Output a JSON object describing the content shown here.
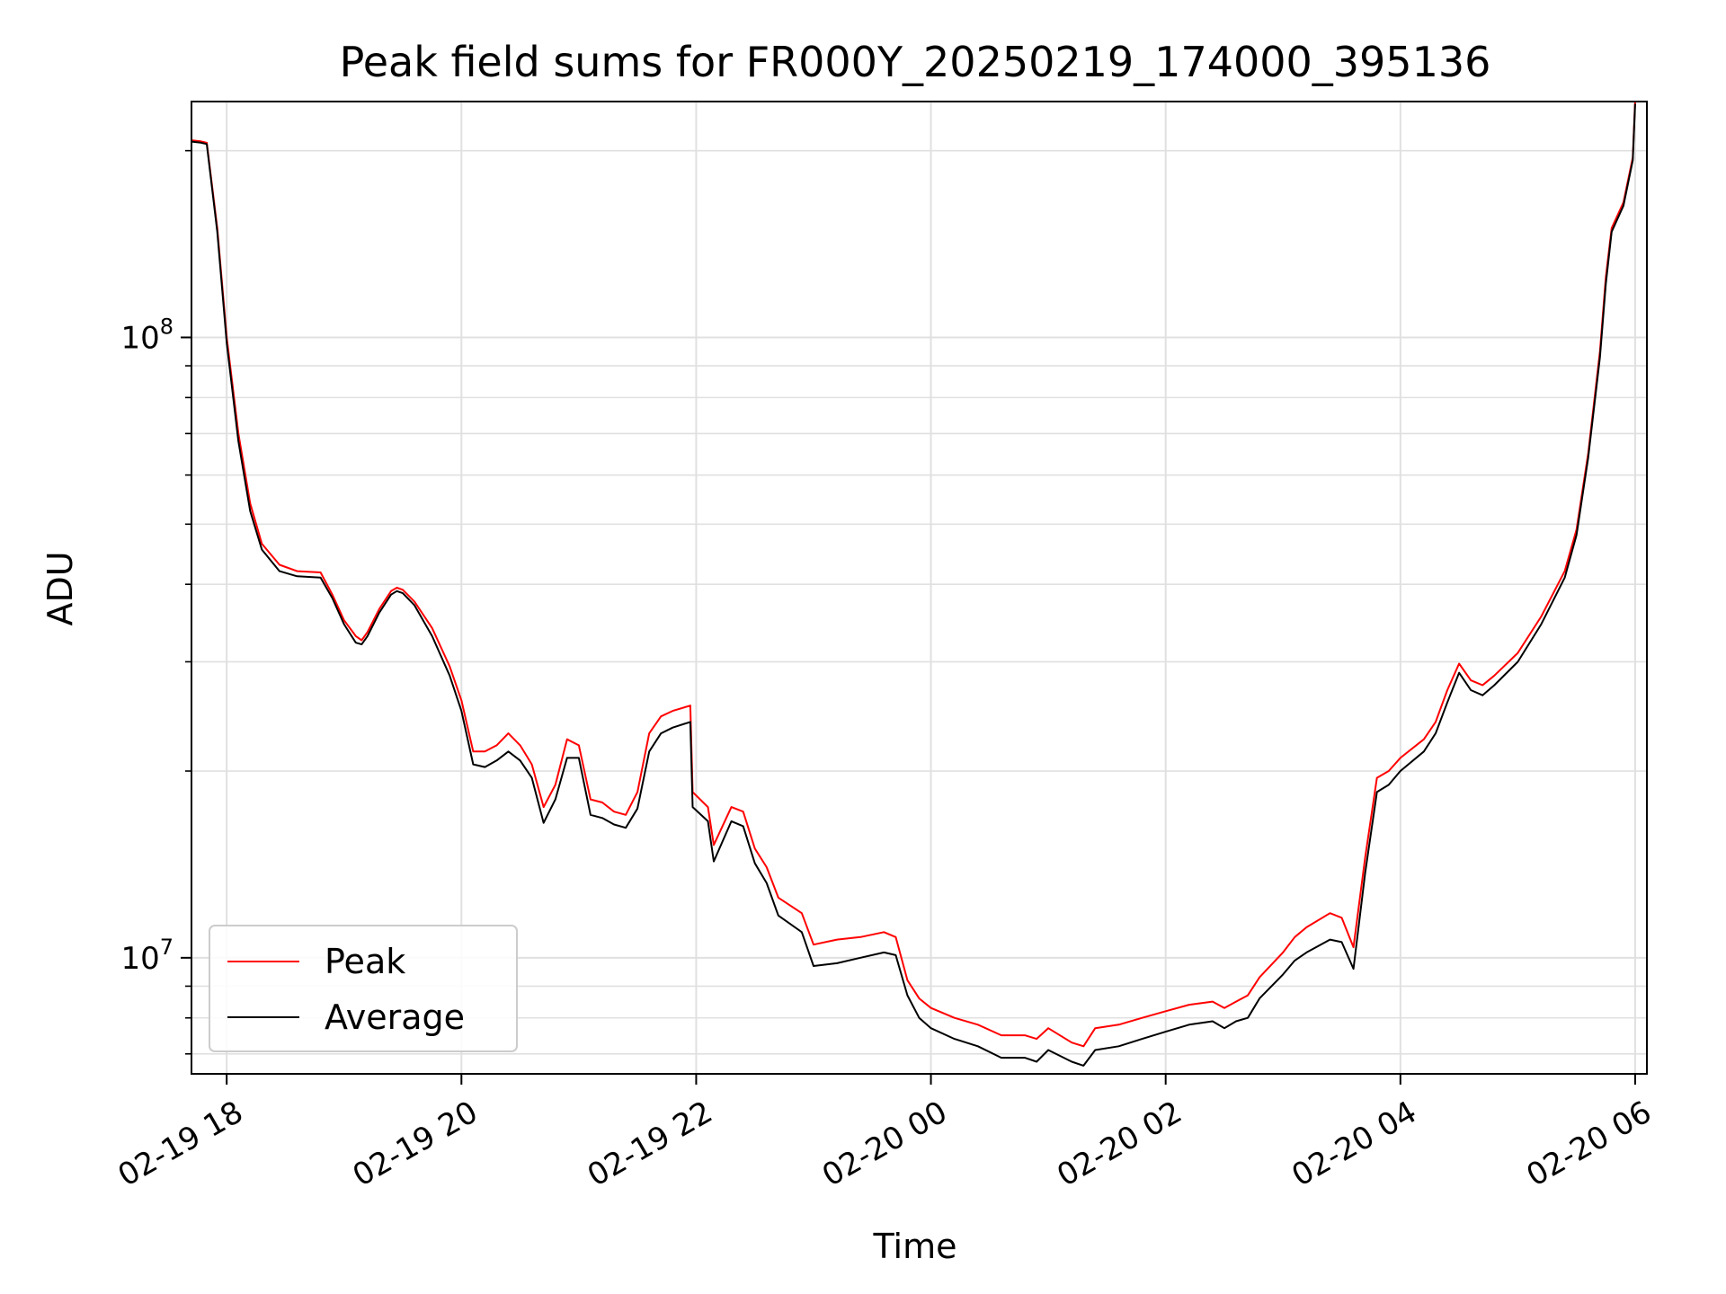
{
  "chart_data": {
    "type": "line",
    "title": "Peak field sums for FR000Y_20250219_174000_395136",
    "xlabel": "Time",
    "ylabel": "ADU",
    "yscale": "log",
    "xlim": [
      17.7,
      30.1
    ],
    "ylim": [
      6500000,
      240000000
    ],
    "grid": true,
    "legend_position": "lower-left",
    "x_unit": "hours since 2025-02-19 00:00",
    "xticks": [
      {
        "x": 18,
        "label": "02-19 18"
      },
      {
        "x": 20,
        "label": "02-19 20"
      },
      {
        "x": 22,
        "label": "02-19 22"
      },
      {
        "x": 24,
        "label": "02-20 00"
      },
      {
        "x": 26,
        "label": "02-20 02"
      },
      {
        "x": 28,
        "label": "02-20 04"
      },
      {
        "x": 30,
        "label": "02-20 06"
      }
    ],
    "yticks": [
      {
        "y": 10000000,
        "base": "10",
        "exp": "7"
      },
      {
        "y": 100000000,
        "base": "10",
        "exp": "8"
      }
    ],
    "series": [
      {
        "name": "Peak",
        "color": "#ff0000",
        "x": [
          17.68,
          17.78,
          17.83,
          17.92,
          18.0,
          18.1,
          18.2,
          18.3,
          18.45,
          18.6,
          18.8,
          18.9,
          19.0,
          19.1,
          19.15,
          19.2,
          19.3,
          19.4,
          19.45,
          19.5,
          19.6,
          19.75,
          19.9,
          20.0,
          20.1,
          20.2,
          20.3,
          20.4,
          20.5,
          20.6,
          20.7,
          20.8,
          20.9,
          21.0,
          21.1,
          21.2,
          21.3,
          21.4,
          21.5,
          21.6,
          21.7,
          21.8,
          21.95,
          21.97,
          22.1,
          22.15,
          22.3,
          22.4,
          22.5,
          22.6,
          22.7,
          22.9,
          23.0,
          23.2,
          23.4,
          23.6,
          23.7,
          23.8,
          23.9,
          24.0,
          24.2,
          24.4,
          24.6,
          24.8,
          24.9,
          25.0,
          25.2,
          25.3,
          25.4,
          25.6,
          25.8,
          26.0,
          26.2,
          26.4,
          26.5,
          26.6,
          26.7,
          26.8,
          27.0,
          27.1,
          27.2,
          27.4,
          27.5,
          27.6,
          27.7,
          27.8,
          27.9,
          28.0,
          28.2,
          28.3,
          28.4,
          28.5,
          28.6,
          28.7,
          28.8,
          29.0,
          29.2,
          29.4,
          29.5,
          29.6,
          29.7,
          29.75,
          29.8,
          29.9,
          29.98,
          30.0
        ],
        "y": [
          208000000,
          207000000,
          206000000,
          150000000,
          100000000,
          70000000,
          54000000,
          46500000,
          43000000,
          42000000,
          41800000,
          38500000,
          35000000,
          33000000,
          32500000,
          33500000,
          36500000,
          39000000,
          39500000,
          39200000,
          37500000,
          34000000,
          29500000,
          26000000,
          21500000,
          21500000,
          22000000,
          23000000,
          22000000,
          20500000,
          17500000,
          19000000,
          22500000,
          22000000,
          18000000,
          17800000,
          17200000,
          17000000,
          18500000,
          23000000,
          24500000,
          25000000,
          25500000,
          18500000,
          17500000,
          15200000,
          17500000,
          17200000,
          15000000,
          14000000,
          12500000,
          11800000,
          10500000,
          10700000,
          10800000,
          11000000,
          10800000,
          9200000,
          8600000,
          8300000,
          8000000,
          7800000,
          7500000,
          7500000,
          7400000,
          7700000,
          7300000,
          7200000,
          7700000,
          7800000,
          8000000,
          8200000,
          8400000,
          8500000,
          8300000,
          8500000,
          8700000,
          9300000,
          10200000,
          10800000,
          11200000,
          11800000,
          11600000,
          10400000,
          14500000,
          19500000,
          20000000,
          21000000,
          22500000,
          24000000,
          27000000,
          29800000,
          28000000,
          27500000,
          28500000,
          31000000,
          35500000,
          42000000,
          49000000,
          65000000,
          95000000,
          125000000,
          150000000,
          165000000,
          195000000,
          240000000
        ]
      },
      {
        "name": "Average",
        "color": "#000000",
        "x": [
          17.68,
          17.78,
          17.83,
          17.92,
          18.0,
          18.1,
          18.2,
          18.3,
          18.45,
          18.6,
          18.8,
          18.9,
          19.0,
          19.1,
          19.15,
          19.2,
          19.3,
          19.4,
          19.45,
          19.5,
          19.6,
          19.75,
          19.9,
          20.0,
          20.1,
          20.2,
          20.3,
          20.4,
          20.5,
          20.6,
          20.7,
          20.8,
          20.9,
          21.0,
          21.1,
          21.2,
          21.3,
          21.4,
          21.5,
          21.6,
          21.7,
          21.8,
          21.95,
          21.97,
          22.1,
          22.15,
          22.3,
          22.4,
          22.5,
          22.6,
          22.7,
          22.9,
          23.0,
          23.2,
          23.4,
          23.6,
          23.7,
          23.8,
          23.9,
          24.0,
          24.2,
          24.4,
          24.6,
          24.8,
          24.9,
          25.0,
          25.2,
          25.3,
          25.4,
          25.6,
          25.8,
          26.0,
          26.2,
          26.4,
          26.5,
          26.6,
          26.7,
          26.8,
          27.0,
          27.1,
          27.2,
          27.4,
          27.5,
          27.6,
          27.7,
          27.8,
          27.9,
          28.0,
          28.2,
          28.3,
          28.4,
          28.5,
          28.6,
          28.7,
          28.8,
          29.0,
          29.2,
          29.4,
          29.5,
          29.6,
          29.7,
          29.75,
          29.8,
          29.9,
          29.98,
          30.0
        ],
        "y": [
          207000000,
          206000000,
          205000000,
          148000000,
          98000000,
          68000000,
          52500000,
          45500000,
          42000000,
          41200000,
          41000000,
          38000000,
          34500000,
          32200000,
          32000000,
          33000000,
          36000000,
          38500000,
          39000000,
          38700000,
          37000000,
          33000000,
          28500000,
          25000000,
          20500000,
          20300000,
          20800000,
          21500000,
          20800000,
          19500000,
          16500000,
          18000000,
          21000000,
          21000000,
          17000000,
          16800000,
          16400000,
          16200000,
          17400000,
          21500000,
          23000000,
          23500000,
          24000000,
          17500000,
          16600000,
          14300000,
          16600000,
          16300000,
          14200000,
          13200000,
          11700000,
          11000000,
          9700000,
          9800000,
          10000000,
          10200000,
          10100000,
          8700000,
          8000000,
          7700000,
          7400000,
          7200000,
          6900000,
          6900000,
          6800000,
          7100000,
          6800000,
          6700000,
          7100000,
          7200000,
          7400000,
          7600000,
          7800000,
          7900000,
          7700000,
          7900000,
          8000000,
          8600000,
          9400000,
          9900000,
          10200000,
          10700000,
          10600000,
          9600000,
          13700000,
          18500000,
          19000000,
          20000000,
          21500000,
          23000000,
          25800000,
          28800000,
          27000000,
          26500000,
          27500000,
          30000000,
          34500000,
          41000000,
          48000000,
          64000000,
          93000000,
          122000000,
          148000000,
          163000000,
          193000000,
          238000000
        ]
      }
    ]
  }
}
